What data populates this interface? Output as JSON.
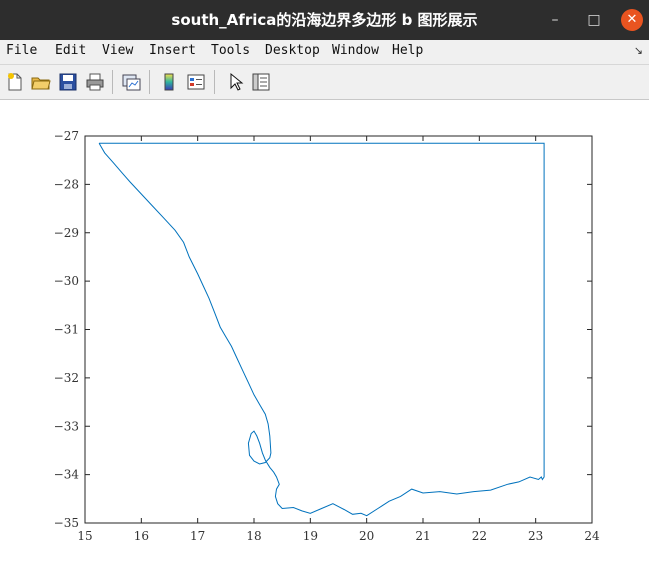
{
  "window": {
    "title": "south_Africa的沿海边界多边形 b 图形展示",
    "controls": {
      "minimize": "–",
      "maximize": "□",
      "close": "✕"
    }
  },
  "menu": [
    "File",
    "Edit",
    "View",
    "Insert",
    "Tools",
    "Desktop",
    "Window",
    "Help"
  ],
  "menu_overflow_glyph": "↘",
  "toolbar": {
    "icons": [
      "new-figure-icon",
      "open-file-icon",
      "save-icon",
      "print-icon",
      "link-plot-icon",
      "insert-colorbar-icon",
      "insert-legend-icon",
      "pointer-icon",
      "property-inspector-icon"
    ]
  },
  "chart_data": {
    "type": "line",
    "title": "",
    "xlabel": "",
    "ylabel": "",
    "xlim": [
      15,
      24
    ],
    "ylim": [
      -35,
      -27
    ],
    "xticks": [
      15,
      16,
      17,
      18,
      19,
      20,
      21,
      22,
      23,
      24
    ],
    "yticks": [
      -27,
      -28,
      -29,
      -30,
      -31,
      -32,
      -33,
      -34,
      -35
    ],
    "grid": false,
    "line_color": "#0072bd",
    "series": [
      {
        "x": [
          15.25,
          15.35,
          15.5,
          15.65,
          15.8,
          16.0,
          16.2,
          16.4,
          16.6,
          16.75,
          16.85,
          17.0,
          17.1,
          17.2,
          17.3,
          17.4,
          17.5,
          17.6,
          17.7,
          17.8,
          17.9,
          18.0,
          18.1,
          18.2,
          18.25,
          18.28,
          18.3,
          18.28,
          18.2,
          18.1,
          18.0,
          17.92,
          17.9,
          17.95,
          18.0,
          18.05,
          18.1,
          18.15,
          18.2,
          18.28,
          18.35,
          18.4,
          18.45,
          18.4,
          18.38,
          18.42,
          18.5,
          18.7,
          18.85,
          19.0,
          19.2,
          19.4,
          19.6,
          19.75,
          19.9,
          20.0,
          20.2,
          20.4,
          20.6,
          20.8,
          21.0,
          21.3,
          21.6,
          21.9,
          22.2,
          22.5,
          22.7,
          22.9,
          23.05,
          23.1,
          23.12,
          23.15,
          23.15,
          23.15,
          15.25
        ],
        "y": [
          -27.15,
          -27.35,
          -27.55,
          -27.75,
          -27.95,
          -28.2,
          -28.45,
          -28.7,
          -28.95,
          -29.2,
          -29.5,
          -29.85,
          -30.1,
          -30.35,
          -30.65,
          -30.95,
          -31.15,
          -31.35,
          -31.6,
          -31.85,
          -32.1,
          -32.35,
          -32.55,
          -32.75,
          -32.95,
          -33.2,
          -33.55,
          -33.65,
          -33.75,
          -33.78,
          -33.72,
          -33.6,
          -33.35,
          -33.15,
          -33.1,
          -33.2,
          -33.35,
          -33.55,
          -33.7,
          -33.85,
          -33.95,
          -34.05,
          -34.2,
          -34.3,
          -34.45,
          -34.6,
          -34.7,
          -34.68,
          -34.75,
          -34.8,
          -34.7,
          -34.6,
          -34.72,
          -34.82,
          -34.8,
          -34.85,
          -34.7,
          -34.55,
          -34.45,
          -34.3,
          -34.38,
          -34.35,
          -34.4,
          -34.35,
          -34.32,
          -34.2,
          -34.15,
          -34.05,
          -34.1,
          -34.05,
          -34.1,
          -34.05,
          -33.0,
          -27.15,
          -27.15
        ]
      }
    ]
  }
}
